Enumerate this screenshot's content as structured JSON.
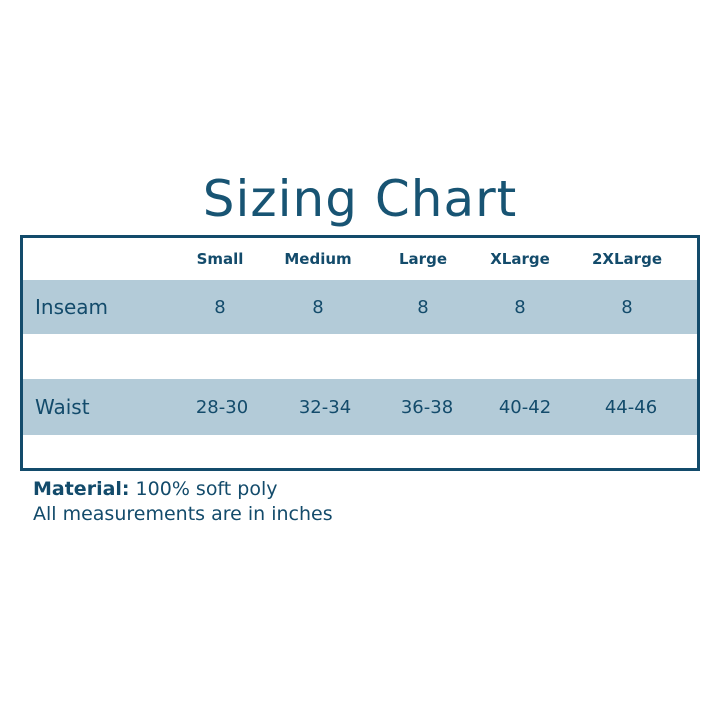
{
  "title": "Sizing Chart",
  "columns": [
    "Small",
    "Medium",
    "Large",
    "XLarge",
    "2XLarge"
  ],
  "rows": [
    {
      "label": "Inseam",
      "values": [
        "8",
        "8",
        "8",
        "8",
        "8"
      ]
    },
    {
      "label": "Waist",
      "values": [
        "28-30",
        "32-34",
        "36-38",
        "40-42",
        "44-46"
      ]
    }
  ],
  "notes": {
    "material_label": "Material:",
    "material_value": " 100% soft poly",
    "units": "All measurements are in inches"
  },
  "colors": {
    "text": "#134b6b",
    "band": "#b3cbd8"
  }
}
